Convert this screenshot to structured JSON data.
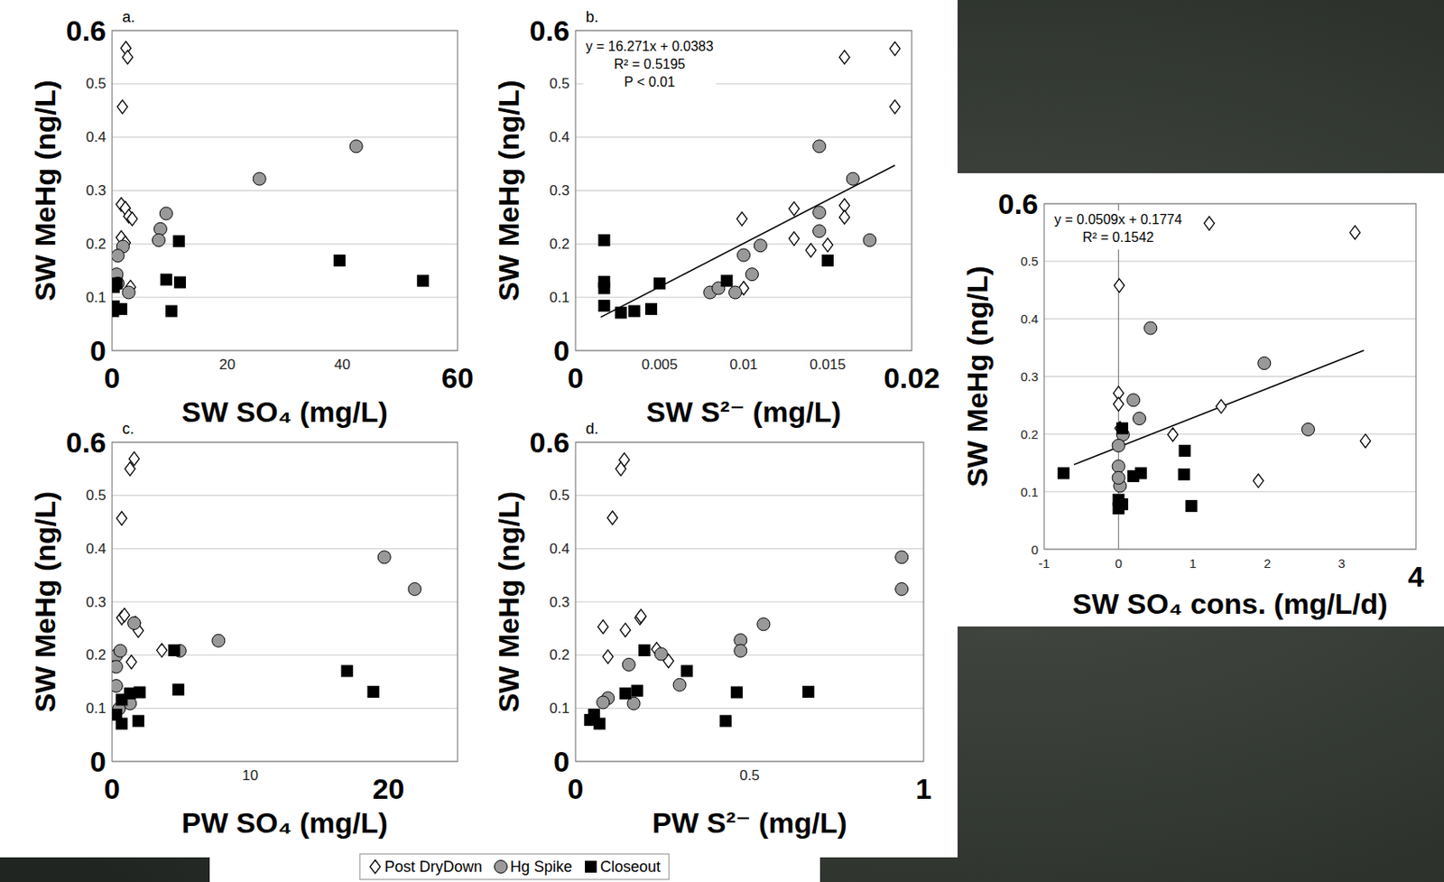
{
  "chart_data": [
    {
      "type": "scatter",
      "title": "a.",
      "x_label": "SW SO₄ (mg/L)",
      "y_label": "SW MeHg (ng/L)",
      "xlim": [
        0,
        60
      ],
      "xticks": [
        0,
        20,
        40,
        60
      ],
      "ylim": [
        0,
        0.6
      ],
      "yticks": [
        0,
        0.1,
        0.2,
        0.3,
        0.4,
        0.5,
        0.6
      ],
      "grid": true,
      "legend": "bottom",
      "series": [
        {
          "name": "Post DryDown",
          "color": "#ffffff",
          "marker": "diamond",
          "x": [
            2.4,
            2.7,
            1.8,
            1.6,
            2.3,
            2.9,
            3.5,
            1.6,
            2.3,
            3.2
          ],
          "values": [
            0.567,
            0.55,
            0.457,
            0.274,
            0.267,
            0.252,
            0.247,
            0.212,
            0.202,
            0.119
          ]
        },
        {
          "name": "Hg Spike",
          "color": "#999999",
          "marker": "circle",
          "x": [
            42.4,
            25.6,
            9.4,
            8.4,
            8.1,
            1.9,
            1.0,
            0.8,
            1.0,
            2.9
          ],
          "values": [
            0.383,
            0.322,
            0.257,
            0.228,
            0.207,
            0.195,
            0.178,
            0.143,
            0.126,
            0.109
          ]
        },
        {
          "name": "Closeout",
          "color": "#000000",
          "marker": "square",
          "x": [
            11.6,
            39.5,
            54,
            9.4,
            11.8,
            0.8,
            0.3,
            10.3,
            1.6,
            0.3,
            0.2
          ],
          "values": [
            0.205,
            0.169,
            0.131,
            0.133,
            0.128,
            0.126,
            0.119,
            0.074,
            0.078,
            0.083,
            0.074
          ]
        }
      ]
    },
    {
      "type": "scatter",
      "title": "b.",
      "x_label": "SW S²⁻ (mg/L)",
      "y_label": "SW MeHg (ng/L)",
      "xlim": [
        0,
        0.02
      ],
      "xticks": [
        0,
        0.005,
        0.01,
        0.015,
        0.02
      ],
      "ylim": [
        0,
        0.6
      ],
      "yticks": [
        0,
        0.1,
        0.2,
        0.3,
        0.4,
        0.5,
        0.6
      ],
      "grid": true,
      "annotations": [
        "y = 16.271x + 0.0383",
        "R² = 0.5195",
        "P < 0.01"
      ],
      "trendline": {
        "slope": 16.271,
        "intercept": 0.0383,
        "x": [
          0.0015,
          0.019
        ]
      },
      "series": [
        {
          "color": "#ffffff",
          "marker": "diamond",
          "x": [
            0.019,
            0.016,
            0.019,
            0.013,
            0.016,
            0.016,
            0.0099,
            0.013,
            0.014,
            0.015,
            0.01
          ],
          "values": [
            0.566,
            0.55,
            0.457,
            0.266,
            0.272,
            0.25,
            0.247,
            0.21,
            0.188,
            0.198,
            0.117
          ]
        },
        {
          "color": "#999999",
          "marker": "circle",
          "x": [
            0.0145,
            0.0165,
            0.0145,
            0.0145,
            0.0175,
            0.011,
            0.01,
            0.0105,
            0.008,
            0.0085,
            0.0095
          ],
          "values": [
            0.383,
            0.322,
            0.259,
            0.224,
            0.207,
            0.197,
            0.179,
            0.143,
            0.109,
            0.117,
            0.109
          ]
        },
        {
          "color": "#000000",
          "marker": "square",
          "x": [
            0.0017,
            0.0017,
            0.0017,
            0.0017,
            0.0027,
            0.0035,
            0.0045,
            0.005,
            0.009,
            0.015
          ],
          "values": [
            0.207,
            0.129,
            0.117,
            0.084,
            0.071,
            0.074,
            0.078,
            0.126,
            0.131,
            0.169
          ]
        }
      ]
    },
    {
      "type": "scatter",
      "title": "c.",
      "x_label": "PW SO₄ (mg/L)",
      "y_label": "SW MeHg (ng/L)",
      "xlim": [
        0,
        25
      ],
      "xticks": [
        0,
        10,
        20
      ],
      "ylim": [
        0,
        0.6
      ],
      "yticks": [
        0,
        0.1,
        0.2,
        0.3,
        0.4,
        0.5,
        0.6
      ],
      "grid": true,
      "series": [
        {
          "color": "#ffffff",
          "marker": "diamond",
          "x": [
            1.6,
            1.3,
            0.7,
            0.7,
            0.9,
            1.7,
            1.9,
            1.4,
            3.6
          ],
          "values": [
            0.569,
            0.55,
            0.457,
            0.27,
            0.275,
            0.26,
            0.246,
            0.187,
            0.209
          ]
        },
        {
          "color": "#999999",
          "marker": "circle",
          "x": [
            19.7,
            21.9,
            1.6,
            0.3,
            0.3,
            0.3,
            0.6,
            1.3,
            7.7,
            4.9,
            0.5
          ],
          "values": [
            0.384,
            0.324,
            0.26,
            0.199,
            0.142,
            0.178,
            0.208,
            0.109,
            0.227,
            0.208,
            0.099
          ]
        },
        {
          "color": "#000000",
          "marker": "square",
          "x": [
            4.5,
            4.8,
            17,
            18.9,
            0.3,
            0.7,
            1.9,
            1.3,
            2,
            0.7
          ],
          "values": [
            0.209,
            0.135,
            0.17,
            0.131,
            0.088,
            0.071,
            0.076,
            0.128,
            0.13,
            0.116
          ]
        }
      ]
    },
    {
      "type": "scatter",
      "title": "d.",
      "x_label": "PW S²⁻ (mg/L)",
      "y_label": "SW MeHg (ng/L)",
      "xlim": [
        0,
        1
      ],
      "xticks": [
        0,
        0.5,
        1
      ],
      "ylim": [
        0,
        0.6
      ],
      "yticks": [
        0,
        0.1,
        0.2,
        0.3,
        0.4,
        0.5,
        0.6
      ],
      "grid": true,
      "series": [
        {
          "color": "#ffffff",
          "marker": "diamond",
          "x": [
            0.14,
            0.13,
            0.106,
            0.185,
            0.079,
            0.143,
            0.093,
            0.233,
            0.267,
            0.188
          ],
          "values": [
            0.567,
            0.55,
            0.458,
            0.27,
            0.253,
            0.247,
            0.197,
            0.211,
            0.189,
            0.273
          ]
        },
        {
          "color": "#999999",
          "marker": "circle",
          "x": [
            0.937,
            0.937,
            0.54,
            0.474,
            0.474,
            0.153,
            0.246,
            0.299,
            0.167,
            0.093,
            0.079
          ],
          "values": [
            0.384,
            0.324,
            0.258,
            0.228,
            0.208,
            0.182,
            0.202,
            0.144,
            0.109,
            0.119,
            0.111
          ]
        },
        {
          "color": "#000000",
          "marker": "square",
          "x": [
            0.198,
            0.177,
            0.32,
            0.143,
            0.463,
            0.669,
            0.431,
            0.069,
            0.042,
            0.053
          ],
          "values": [
            0.209,
            0.133,
            0.17,
            0.128,
            0.13,
            0.131,
            0.076,
            0.071,
            0.078,
            0.088
          ]
        }
      ]
    },
    {
      "type": "scatter",
      "x_label": "SW SO₄ cons. (mg/L/d)",
      "y_label": "SW MeHg (ng/L)",
      "xlim": [
        -1,
        4
      ],
      "xticks": [
        -1,
        0,
        1,
        2,
        3,
        4
      ],
      "ylim": [
        0,
        0.6
      ],
      "yticks": [
        0,
        0.1,
        0.2,
        0.3,
        0.4,
        0.5,
        0.6
      ],
      "grid": true,
      "annotations": [
        "y = 0.0509x + 0.1774",
        "R² = 0.1542"
      ],
      "trendline": {
        "slope": 0.0509,
        "intercept": 0.1774,
        "x": [
          -0.6,
          3.3
        ]
      },
      "series": [
        {
          "color": "#ffffff",
          "marker": "diamond",
          "x": [
            1.22,
            3.18,
            0.01,
            0,
            0,
            1.38,
            0.73,
            3.32,
            1.88,
            0.02
          ],
          "values": [
            0.566,
            0.55,
            0.458,
            0.271,
            0.252,
            0.248,
            0.199,
            0.188,
            0.119,
            0.21
          ]
        },
        {
          "color": "#999999",
          "marker": "circle",
          "x": [
            0.43,
            1.96,
            0.2,
            0.28,
            0.06,
            0,
            0,
            0.02,
            2.55,
            0
          ],
          "values": [
            0.384,
            0.323,
            0.259,
            0.227,
            0.199,
            0.18,
            0.144,
            0.11,
            0.208,
            0.124
          ]
        },
        {
          "color": "#000000",
          "marker": "square",
          "x": [
            -0.74,
            0.3,
            0.2,
            0.89,
            0.88,
            0.98,
            0.05,
            0,
            0.05,
            0
          ],
          "values": [
            0.132,
            0.132,
            0.127,
            0.171,
            0.13,
            0.075,
            0.21,
            0.086,
            0.078,
            0.071
          ]
        }
      ]
    }
  ]
}
